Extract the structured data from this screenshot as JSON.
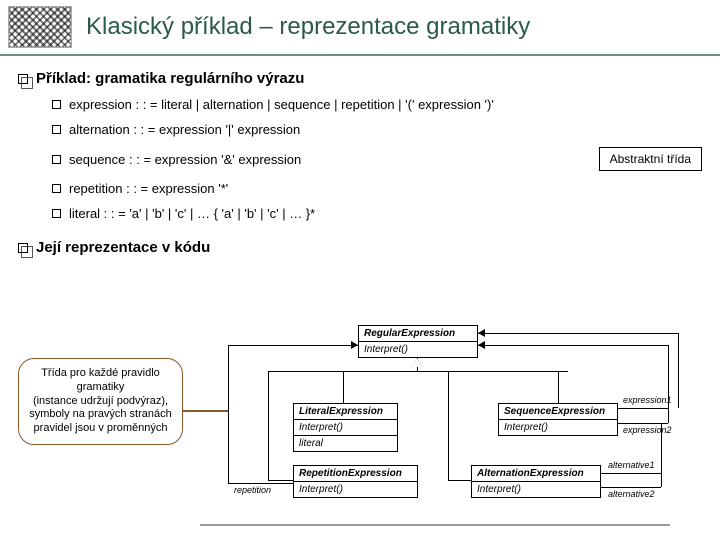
{
  "title": "Klasický příklad – reprezentace gramatiky",
  "section1": "Příklad: gramatika regulárního výrazu",
  "rules": [
    "expression : : = literal | alternation | sequence | repetition | '(' expression ')'",
    "alternation : : = expression '|' expression",
    "sequence : : = expression '&' expression",
    "repetition : : = expression '*'",
    "literal : : = 'a' | 'b' | 'c' | … { 'a' | 'b' | 'c' | … }*"
  ],
  "abstract_label": "Abstraktní třída",
  "section2": "Její reprezentace v kódu",
  "callout": "Třída pro každé pravidlo gramatiky\n(instance udržují podvýraz),\nsymboly na pravých stranách pravidel jsou v proměnných",
  "uml": {
    "root": {
      "name": "RegularExpression",
      "op": "Interpret()"
    },
    "literal": {
      "name": "LiteralExpression",
      "op": "Interpret()",
      "attr": "literal"
    },
    "sequence": {
      "name": "SequenceExpression",
      "op": "Interpret()",
      "r1": "expression1",
      "r2": "expression2"
    },
    "repetition": {
      "name": "RepetitionExpression",
      "op": "Interpret()",
      "r": "repetition"
    },
    "alternation": {
      "name": "AlternationExpression",
      "op": "Interpret()",
      "r1": "alternative1",
      "r2": "alternative2"
    }
  },
  "colors": {
    "title": "#2a5a4a",
    "border": "#6b9080",
    "callout": "#8a5a2a"
  }
}
